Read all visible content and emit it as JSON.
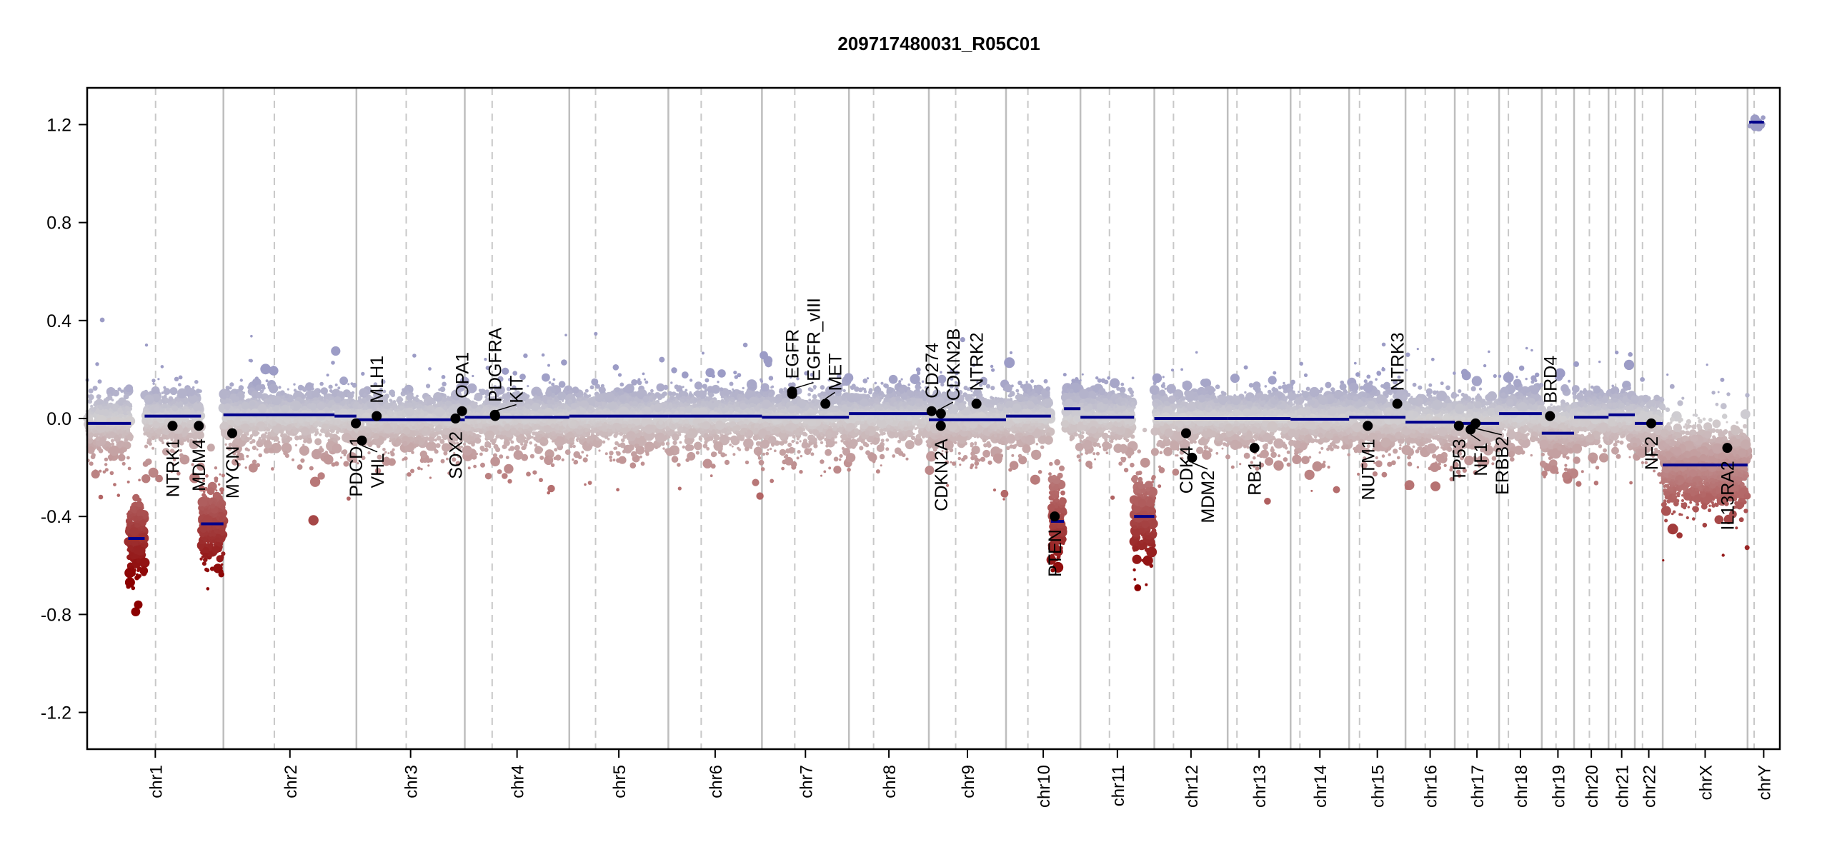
{
  "chart_data": {
    "type": "scatter",
    "title": "209717480031_R05C01",
    "xlabel": "",
    "ylabel": "",
    "ylim": [
      -1.35,
      1.35
    ],
    "yticks": [
      {
        "value": -1.2,
        "label": "-1.2"
      },
      {
        "value": -0.8,
        "label": "-0.8"
      },
      {
        "value": -0.4,
        "label": "-0.4"
      },
      {
        "value": 0.0,
        "label": "0.0"
      },
      {
        "value": 0.4,
        "label": "0.4"
      },
      {
        "value": 0.8,
        "label": "0.8"
      },
      {
        "value": 1.2,
        "label": "1.2"
      }
    ],
    "chromosomes": [
      {
        "name": "chr1",
        "length": 249,
        "centromere": 125
      },
      {
        "name": "chr2",
        "length": 243,
        "centromere": 93
      },
      {
        "name": "chr3",
        "length": 198,
        "centromere": 91
      },
      {
        "name": "chr4",
        "length": 191,
        "centromere": 50
      },
      {
        "name": "chr5",
        "length": 181,
        "centromere": 48
      },
      {
        "name": "chr6",
        "length": 171,
        "centromere": 60
      },
      {
        "name": "chr7",
        "length": 159,
        "centromere": 60
      },
      {
        "name": "chr8",
        "length": 146,
        "centromere": 45
      },
      {
        "name": "chr9",
        "length": 141,
        "centromere": 49
      },
      {
        "name": "chr10",
        "length": 136,
        "centromere": 40
      },
      {
        "name": "chr11",
        "length": 135,
        "centromere": 53
      },
      {
        "name": "chr12",
        "length": 134,
        "centromere": 35
      },
      {
        "name": "chr13",
        "length": 115,
        "centromere": 17
      },
      {
        "name": "chr14",
        "length": 107,
        "centromere": 17
      },
      {
        "name": "chr15",
        "length": 103,
        "centromere": 19
      },
      {
        "name": "chr16",
        "length": 90,
        "centromere": 36
      },
      {
        "name": "chr17",
        "length": 81,
        "centromere": 24
      },
      {
        "name": "chr18",
        "length": 78,
        "centromere": 17
      },
      {
        "name": "chr19",
        "length": 59,
        "centromere": 26
      },
      {
        "name": "chr20",
        "length": 63,
        "centromere": 28
      },
      {
        "name": "chr21",
        "length": 48,
        "centromere": 13
      },
      {
        "name": "chr22",
        "length": 51,
        "centromere": 14
      },
      {
        "name": "chrX",
        "length": 155,
        "centromere": 60
      },
      {
        "name": "chrY",
        "length": 59,
        "centromere": 12
      }
    ],
    "segments": [
      {
        "chr": "chr1",
        "start": 0,
        "end": 80,
        "value": -0.02
      },
      {
        "chr": "chr1",
        "start": 75,
        "end": 105,
        "value": -0.49
      },
      {
        "chr": "chr1",
        "start": 105,
        "end": 208,
        "value": 0.01
      },
      {
        "chr": "chr1",
        "start": 208,
        "end": 249,
        "value": -0.43
      },
      {
        "chr": "chr2",
        "start": 0,
        "end": 203,
        "value": 0.015
      },
      {
        "chr": "chr2",
        "start": 203,
        "end": 243,
        "value": 0.01
      },
      {
        "chr": "chr3",
        "start": 0,
        "end": 198,
        "value": -0.005
      },
      {
        "chr": "chr4",
        "start": 0,
        "end": 191,
        "value": 0.005
      },
      {
        "chr": "chr5",
        "start": 0,
        "end": 181,
        "value": 0.01
      },
      {
        "chr": "chr6",
        "start": 0,
        "end": 171,
        "value": 0.01
      },
      {
        "chr": "chr7",
        "start": 0,
        "end": 159,
        "value": 0.005
      },
      {
        "chr": "chr8",
        "start": 0,
        "end": 146,
        "value": 0.02
      },
      {
        "chr": "chr9",
        "start": 0,
        "end": 141,
        "value": -0.005
      },
      {
        "chr": "chr10",
        "start": 0,
        "end": 82,
        "value": 0.01
      },
      {
        "chr": "chr10",
        "start": 82,
        "end": 106,
        "value": -0.42
      },
      {
        "chr": "chr10",
        "start": 106,
        "end": 136,
        "value": 0.04
      },
      {
        "chr": "chr11",
        "start": 0,
        "end": 98,
        "value": 0.005
      },
      {
        "chr": "chr11",
        "start": 98,
        "end": 135,
        "value": -0.4
      },
      {
        "chr": "chr12",
        "start": 0,
        "end": 134,
        "value": 0.0
      },
      {
        "chr": "chr13",
        "start": 0,
        "end": 115,
        "value": 0.0
      },
      {
        "chr": "chr14",
        "start": 0,
        "end": 107,
        "value": -0.003
      },
      {
        "chr": "chr15",
        "start": 0,
        "end": 103,
        "value": 0.005
      },
      {
        "chr": "chr16",
        "start": 0,
        "end": 90,
        "value": -0.015
      },
      {
        "chr": "chr17",
        "start": 0,
        "end": 81,
        "value": -0.02
      },
      {
        "chr": "chr18",
        "start": 0,
        "end": 78,
        "value": 0.02
      },
      {
        "chr": "chr19",
        "start": 0,
        "end": 59,
        "value": -0.06
      },
      {
        "chr": "chr20",
        "start": 0,
        "end": 63,
        "value": 0.005
      },
      {
        "chr": "chr21",
        "start": 0,
        "end": 48,
        "value": 0.015
      },
      {
        "chr": "chr22",
        "start": 0,
        "end": 51,
        "value": -0.02
      },
      {
        "chr": "chrX",
        "start": 0,
        "end": 155,
        "value": -0.19
      },
      {
        "chr": "chrY",
        "start": 3,
        "end": 30,
        "value": 1.21
      }
    ],
    "genes": [
      {
        "name": "NTRK1",
        "chr": "chr1",
        "pos": 156,
        "value": -0.03
      },
      {
        "name": "MDM4",
        "chr": "chr1",
        "pos": 204,
        "value": -0.03
      },
      {
        "name": "MYCN",
        "chr": "chr2",
        "pos": 16,
        "value": -0.06
      },
      {
        "name": "PDCD1",
        "chr": "chr2",
        "pos": 242,
        "value": -0.02
      },
      {
        "name": "VHL",
        "chr": "chr3",
        "pos": 10,
        "value": -0.09
      },
      {
        "name": "MLH1",
        "chr": "chr3",
        "pos": 37,
        "value": 0.01
      },
      {
        "name": "SOX2",
        "chr": "chr3",
        "pos": 181,
        "value": 0.0
      },
      {
        "name": "OPA1",
        "chr": "chr3",
        "pos": 193,
        "value": 0.03
      },
      {
        "name": "PDGFRA",
        "chr": "chr4",
        "pos": 55,
        "value": 0.015
      },
      {
        "name": "KIT",
        "chr": "chr4",
        "pos": 55.5,
        "value": 0.01
      },
      {
        "name": "EGFR",
        "chr": "chr7",
        "pos": 55,
        "value": 0.11
      },
      {
        "name": "EGFR_vIII",
        "chr": "chr7",
        "pos": 55.2,
        "value": 0.1
      },
      {
        "name": "MET",
        "chr": "chr7",
        "pos": 116,
        "value": 0.06
      },
      {
        "name": "CD274",
        "chr": "chr9",
        "pos": 5,
        "value": 0.03
      },
      {
        "name": "CDKN2B",
        "chr": "chr9",
        "pos": 22,
        "value": 0.02
      },
      {
        "name": "CDKN2A",
        "chr": "chr9",
        "pos": 21.9,
        "value": -0.03
      },
      {
        "name": "NTRK2",
        "chr": "chr9",
        "pos": 87,
        "value": 0.06
      },
      {
        "name": "PTEN",
        "chr": "chr10",
        "pos": 89,
        "value": -0.4
      },
      {
        "name": "CDK4",
        "chr": "chr12",
        "pos": 58,
        "value": -0.06
      },
      {
        "name": "MDM2",
        "chr": "chr12",
        "pos": 69,
        "value": -0.16
      },
      {
        "name": "RB1",
        "chr": "chr13",
        "pos": 49,
        "value": -0.12
      },
      {
        "name": "NUTM1",
        "chr": "chr15",
        "pos": 34,
        "value": -0.03
      },
      {
        "name": "NTRK3",
        "chr": "chr15",
        "pos": 88,
        "value": 0.06
      },
      {
        "name": "TP53",
        "chr": "chr17",
        "pos": 7.5,
        "value": -0.03
      },
      {
        "name": "NF1",
        "chr": "chr17",
        "pos": 29,
        "value": -0.045
      },
      {
        "name": "ERBB2",
        "chr": "chr17",
        "pos": 38,
        "value": -0.02
      },
      {
        "name": "BRD4",
        "chr": "chr19",
        "pos": 15,
        "value": 0.01
      },
      {
        "name": "NF2",
        "chr": "chr22",
        "pos": 30,
        "value": -0.02
      },
      {
        "name": "IL13RA2",
        "chr": "chrX",
        "pos": 118,
        "value": -0.12
      }
    ],
    "probe_noise_sd": 0.055,
    "colors": {
      "segment": "#00008b",
      "gain": "#9c9cc6",
      "neutral": "#d2d0d2",
      "loss_mid": "#b46a6a",
      "loss_deep": "#8b0000",
      "chr_line": "#bebebe",
      "gene_point": "#000000"
    }
  }
}
